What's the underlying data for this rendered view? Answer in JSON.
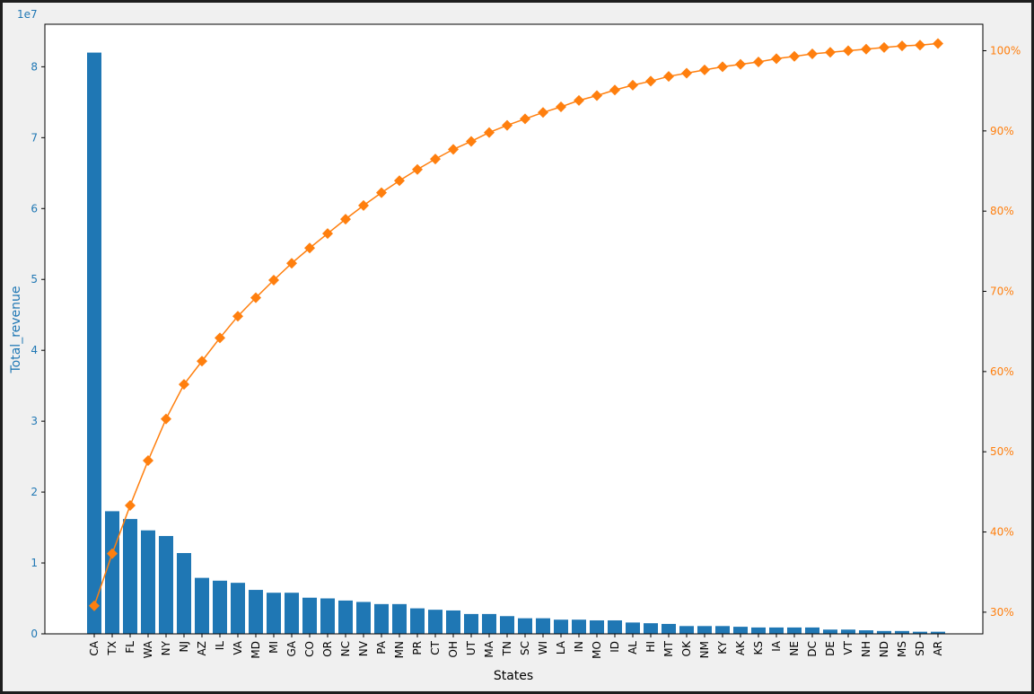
{
  "chart_data": {
    "type": "bar",
    "xlabel": "States",
    "ylabel": "Total_revenue",
    "y_offset_label": "1e7",
    "ylim": [
      0,
      86000000
    ],
    "y2lim": [
      27.3,
      103.3
    ],
    "yticks": [
      0,
      1,
      2,
      3,
      4,
      5,
      6,
      7,
      8
    ],
    "y2ticks": [
      "30%",
      "40%",
      "50%",
      "60%",
      "70%",
      "80%",
      "90%",
      "100%"
    ],
    "y2tick_values": [
      30,
      40,
      50,
      60,
      70,
      80,
      90,
      100
    ],
    "categories": [
      "CA",
      "TX",
      "FL",
      "WA",
      "NY",
      "NJ",
      "AZ",
      "IL",
      "VA",
      "MD",
      "MI",
      "GA",
      "CO",
      "OR",
      "NC",
      "NV",
      "PA",
      "MN",
      "PR",
      "CT",
      "OH",
      "UT",
      "MA",
      "TN",
      "SC",
      "WI",
      "LA",
      "IN",
      "MO",
      "ID",
      "AL",
      "HI",
      "MT",
      "OK",
      "NM",
      "KY",
      "AK",
      "KS",
      "IA",
      "NE",
      "DC",
      "DE",
      "VT",
      "NH",
      "ND",
      "MS",
      "SD",
      "AR"
    ],
    "series": [
      {
        "type": "bar",
        "axis": "left",
        "color": "#1f77b4",
        "values": [
          82000000,
          17300000,
          16200000,
          14600000,
          13800000,
          11400000,
          7900000,
          7500000,
          7200000,
          6200000,
          5800000,
          5800000,
          5100000,
          5000000,
          4700000,
          4500000,
          4200000,
          4200000,
          3600000,
          3400000,
          3300000,
          2800000,
          2800000,
          2500000,
          2200000,
          2200000,
          2000000,
          2000000,
          1900000,
          1900000,
          1600000,
          1500000,
          1400000,
          1100000,
          1100000,
          1100000,
          1000000,
          900000,
          900000,
          900000,
          900000,
          600000,
          600000,
          500000,
          400000,
          400000,
          300000,
          300000
        ]
      },
      {
        "type": "line",
        "axis": "right",
        "color": "#ff7f0e",
        "marker": "diamond",
        "values": [
          30.8,
          37.3,
          43.3,
          48.9,
          54.1,
          58.4,
          61.3,
          64.2,
          66.9,
          69.2,
          71.4,
          73.5,
          75.4,
          77.2,
          79.0,
          80.7,
          82.3,
          83.8,
          85.2,
          86.5,
          87.7,
          88.7,
          89.8,
          90.7,
          91.5,
          92.3,
          93.0,
          93.8,
          94.4,
          95.1,
          95.7,
          96.2,
          96.8,
          97.2,
          97.6,
          98.0,
          98.3,
          98.6,
          99.0,
          99.3,
          99.6,
          99.8,
          100.0,
          100.2,
          100.4,
          100.6,
          100.7,
          100.9
        ]
      }
    ],
    "grid": false,
    "legend": "none"
  },
  "colors": {
    "bar": "#1f77b4",
    "line": "#ff7f0e",
    "axis": "#000000",
    "left_tick_text": "#1f77b4",
    "right_tick_text": "#ff7f0e"
  }
}
